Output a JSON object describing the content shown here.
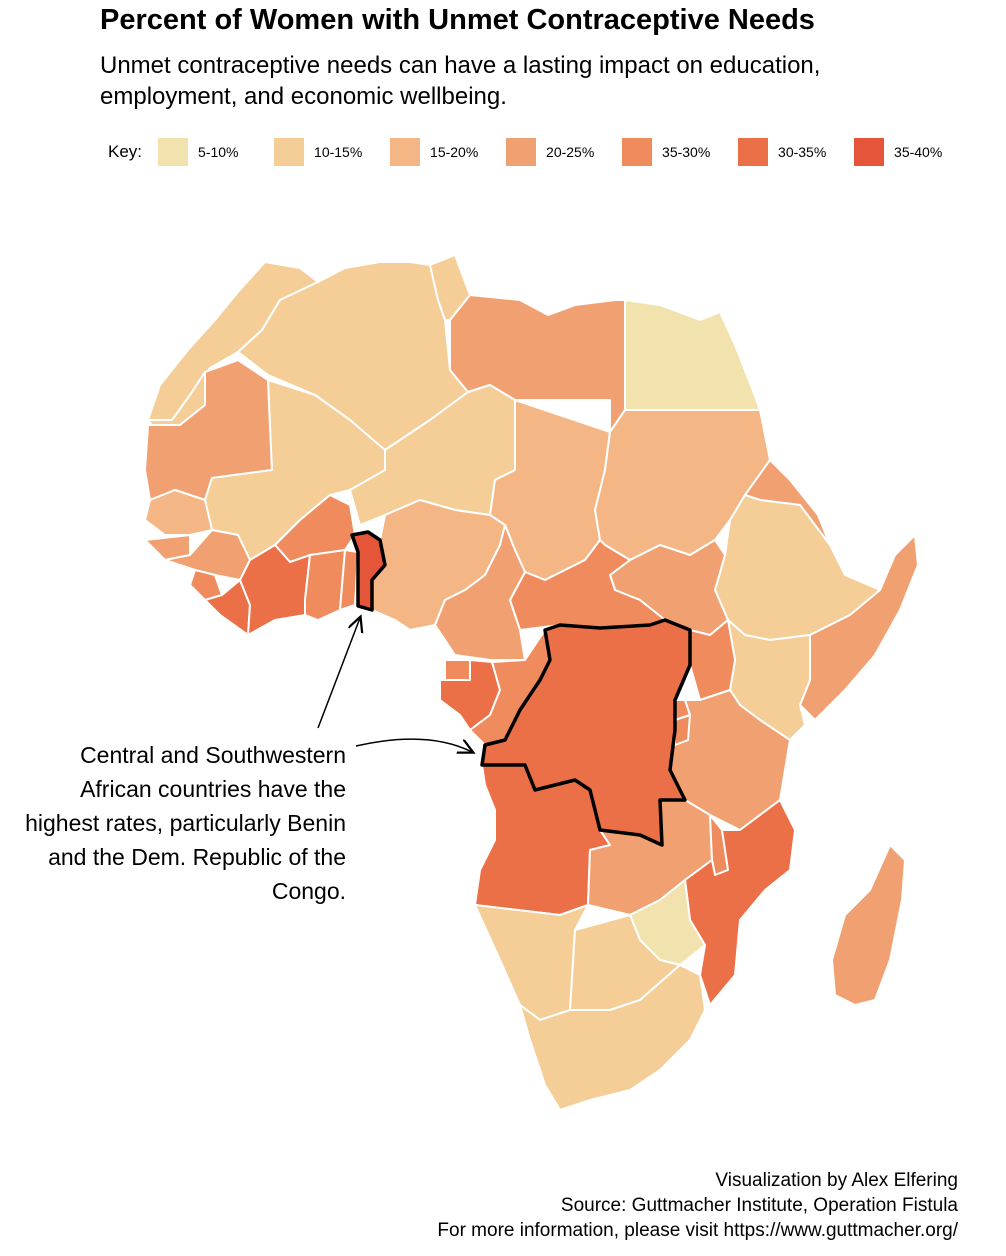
{
  "title": "Percent of Women with Unmet Contraceptive Needs",
  "subtitle": "Unmet contraceptive needs can have a lasting impact on education, employment, and economic wellbeing.",
  "legend": {
    "label": "Key:",
    "items": [
      {
        "label": "5-10%",
        "color": "#f2e2ad"
      },
      {
        "label": "10-15%",
        "color": "#f4cd97"
      },
      {
        "label": "15-20%",
        "color": "#f3b684"
      },
      {
        "label": "20-25%",
        "color": "#f1a171"
      },
      {
        "label": "35-30%",
        "color": "#ef8b5d"
      },
      {
        "label": "30-35%",
        "color": "#ec7047"
      },
      {
        "label": "35-40%",
        "color": "#e5553a"
      }
    ]
  },
  "annotation": "Central and Southwestern African countries have the highest rates, particularly Benin and the Dem. Republic of the Congo.",
  "footer": {
    "credit": "Visualization by Alex Elfering",
    "source": "Source: Guttmacher Institute, Operation Fistula",
    "info": "For more information, please visit https://www.guttmacher.org/"
  }
}
